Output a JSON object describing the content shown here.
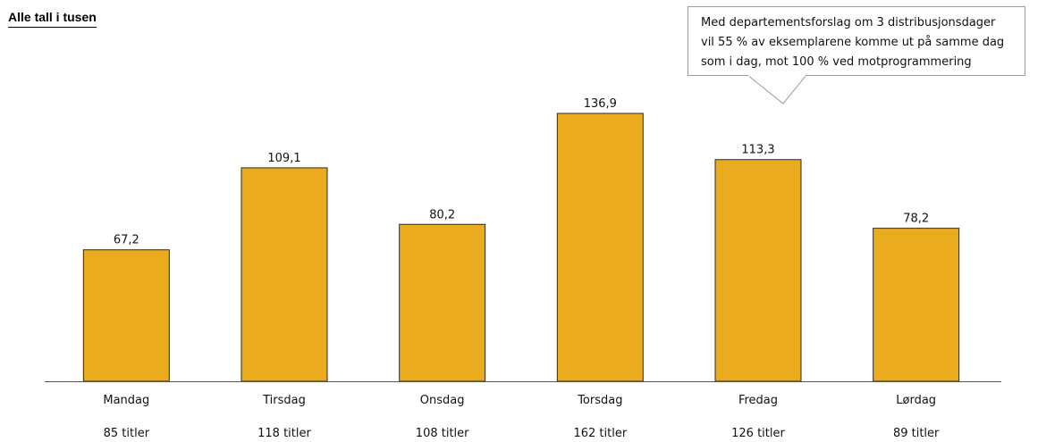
{
  "header_note": "Alle tall i tusen",
  "callout": {
    "lines": [
      "Med departementsforslag om 3 distribusjonsdager",
      "vil 55 % av eksemplarene komme ut på samme dag",
      "som i dag, mot 100 % ved motprogrammering"
    ]
  },
  "colors": {
    "bar_fill": "#EBAB1E",
    "bar_stroke": "#2b2b2b",
    "axis": "#555555"
  },
  "chart_data": {
    "type": "bar",
    "categories": [
      "Mandag",
      "Tirsdag",
      "Onsdag",
      "Torsdag",
      "Fredag",
      "Lørdag"
    ],
    "values": [
      67.2,
      109.1,
      80.2,
      136.9,
      113.3,
      78.2
    ],
    "value_labels": [
      "67,2",
      "109,1",
      "80,2",
      "136,9",
      "113,3",
      "78,2"
    ],
    "sublabels": [
      "85 titler",
      "118 titler",
      "108 titler",
      "162 titler",
      "126 titler",
      "89 titler"
    ],
    "title": "",
    "xlabel": "",
    "ylabel": "",
    "ylim": [
      0,
      150
    ],
    "grid": false,
    "legend": "none"
  }
}
